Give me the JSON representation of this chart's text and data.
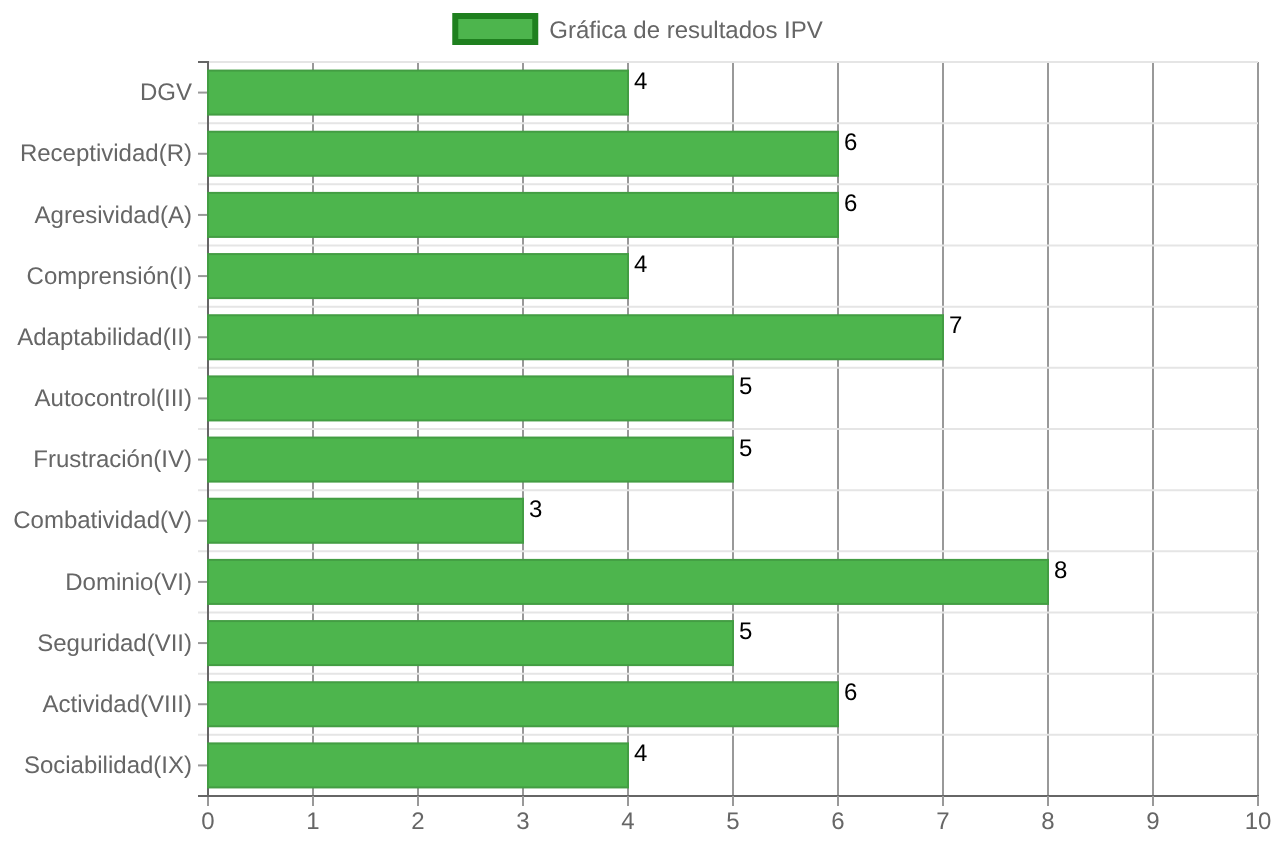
{
  "chart_data": {
    "type": "bar",
    "orientation": "horizontal",
    "categories": [
      "DGV",
      "Receptividad(R)",
      "Agresividad(A)",
      "Comprensión(I)",
      "Adaptabilidad(II)",
      "Autocontrol(III)",
      "Frustración(IV)",
      "Combatividad(V)",
      "Dominio(VI)",
      "Seguridad(VII)",
      "Actividad(VIII)",
      "Sociabilidad(IX)"
    ],
    "series": [
      {
        "name": "Gráfica de resultados IPV",
        "color": "#4db54d",
        "values": [
          4,
          6,
          6,
          4,
          7,
          5,
          5,
          3,
          8,
          5,
          6,
          4
        ]
      }
    ],
    "xlim": [
      0,
      10
    ],
    "xticks": [
      0,
      1,
      2,
      3,
      4,
      5,
      6,
      7,
      8,
      9,
      10
    ],
    "grid": true,
    "legend": "top",
    "data_labels": true
  }
}
